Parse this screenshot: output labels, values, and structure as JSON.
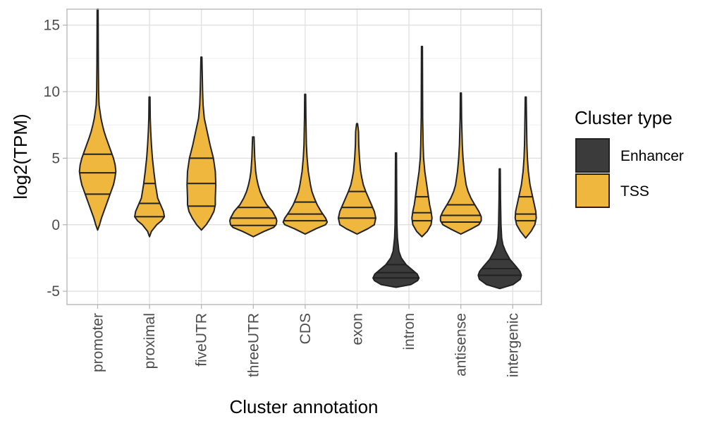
{
  "chart_data": {
    "type": "violin",
    "xlabel": "Cluster annotation",
    "ylabel": "log2(TPM)",
    "ylim": [
      -6,
      16.2
    ],
    "y_ticks": [
      -5,
      0,
      5,
      10,
      15
    ],
    "y_tick_labels": [
      "-5",
      "0",
      "5",
      "10",
      "15"
    ],
    "grid": true,
    "legend": {
      "title": "Cluster type",
      "position": "right",
      "entries": [
        {
          "label": "Enhancer",
          "color": "#3b3b3b"
        },
        {
          "label": "TSS",
          "color": "#f0b73e"
        }
      ]
    },
    "categories": [
      "promoter",
      "proximal",
      "fiveUTR",
      "threeUTR",
      "CDS",
      "exon",
      "intron",
      "antisense",
      "intergenic"
    ],
    "violins": [
      {
        "category": "promoter",
        "type": "TSS",
        "min": -0.4,
        "max": 16.2,
        "quartiles": [
          2.3,
          3.9,
          5.3
        ],
        "profile": [
          [
            -0.4,
            0.0
          ],
          [
            0.0,
            0.08
          ],
          [
            0.5,
            0.16
          ],
          [
            1.0,
            0.26
          ],
          [
            1.5,
            0.36
          ],
          [
            2.0,
            0.46
          ],
          [
            2.5,
            0.56
          ],
          [
            3.0,
            0.66
          ],
          [
            3.5,
            0.72
          ],
          [
            4.0,
            0.76
          ],
          [
            4.5,
            0.73
          ],
          [
            5.0,
            0.66
          ],
          [
            5.5,
            0.56
          ],
          [
            6.0,
            0.46
          ],
          [
            6.5,
            0.36
          ],
          [
            7.0,
            0.27
          ],
          [
            7.5,
            0.2
          ],
          [
            8.0,
            0.14
          ],
          [
            9.0,
            0.06
          ],
          [
            10.0,
            0.04
          ],
          [
            12.0,
            0.03
          ],
          [
            16.2,
            0.02
          ]
        ]
      },
      {
        "category": "proximal",
        "type": "TSS",
        "min": -0.9,
        "max": 9.6,
        "quartiles": [
          0.6,
          1.6,
          3.1
        ],
        "profile": [
          [
            -0.9,
            0.0
          ],
          [
            -0.5,
            0.08
          ],
          [
            0.0,
            0.3
          ],
          [
            0.3,
            0.5
          ],
          [
            0.6,
            0.62
          ],
          [
            1.0,
            0.58
          ],
          [
            1.5,
            0.46
          ],
          [
            2.0,
            0.34
          ],
          [
            3.0,
            0.25
          ],
          [
            4.0,
            0.18
          ],
          [
            5.0,
            0.12
          ],
          [
            6.0,
            0.08
          ],
          [
            7.0,
            0.05
          ],
          [
            8.0,
            0.03
          ],
          [
            9.6,
            0.02
          ]
        ]
      },
      {
        "category": "fiveUTR",
        "type": "TSS",
        "min": -0.4,
        "max": 12.6,
        "quartiles": [
          1.4,
          3.1,
          5.0
        ],
        "profile": [
          [
            -0.4,
            0.0
          ],
          [
            0.0,
            0.2
          ],
          [
            0.5,
            0.38
          ],
          [
            1.0,
            0.52
          ],
          [
            1.5,
            0.58
          ],
          [
            2.0,
            0.58
          ],
          [
            3.0,
            0.6
          ],
          [
            4.0,
            0.58
          ],
          [
            5.0,
            0.5
          ],
          [
            6.0,
            0.36
          ],
          [
            7.0,
            0.24
          ],
          [
            8.0,
            0.12
          ],
          [
            9.0,
            0.07
          ],
          [
            10.0,
            0.05
          ],
          [
            12.6,
            0.02
          ]
        ]
      },
      {
        "category": "threeUTR",
        "type": "TSS",
        "min": -0.9,
        "max": 6.6,
        "quartiles": [
          -0.05,
          0.5,
          1.3
        ],
        "profile": [
          [
            -0.9,
            0.0
          ],
          [
            -0.5,
            0.45
          ],
          [
            -0.2,
            0.85
          ],
          [
            0.0,
            0.95
          ],
          [
            0.3,
            0.98
          ],
          [
            0.5,
            0.95
          ],
          [
            1.0,
            0.8
          ],
          [
            1.5,
            0.56
          ],
          [
            2.0,
            0.4
          ],
          [
            2.5,
            0.28
          ],
          [
            3.0,
            0.2
          ],
          [
            3.5,
            0.14
          ],
          [
            4.0,
            0.1
          ],
          [
            5.0,
            0.06
          ],
          [
            6.6,
            0.03
          ]
        ]
      },
      {
        "category": "CDS",
        "type": "TSS",
        "min": -0.7,
        "max": 9.8,
        "quartiles": [
          0.3,
          0.8,
          1.7
        ],
        "profile": [
          [
            -0.7,
            0.0
          ],
          [
            -0.3,
            0.45
          ],
          [
            0.0,
            0.85
          ],
          [
            0.2,
            0.92
          ],
          [
            0.5,
            0.85
          ],
          [
            1.0,
            0.66
          ],
          [
            1.5,
            0.5
          ],
          [
            2.0,
            0.38
          ],
          [
            2.5,
            0.28
          ],
          [
            3.0,
            0.22
          ],
          [
            4.0,
            0.13
          ],
          [
            5.0,
            0.08
          ],
          [
            6.0,
            0.05
          ],
          [
            8.0,
            0.03
          ],
          [
            9.8,
            0.02
          ]
        ]
      },
      {
        "category": "exon",
        "type": "TSS",
        "min": -0.7,
        "max": 7.6,
        "quartiles": [
          0.5,
          1.3,
          2.5
        ],
        "profile": [
          [
            -0.7,
            0.0
          ],
          [
            -0.3,
            0.45
          ],
          [
            0.0,
            0.72
          ],
          [
            0.5,
            0.78
          ],
          [
            1.0,
            0.72
          ],
          [
            1.5,
            0.6
          ],
          [
            2.0,
            0.48
          ],
          [
            2.5,
            0.36
          ],
          [
            3.0,
            0.26
          ],
          [
            3.5,
            0.2
          ],
          [
            4.0,
            0.15
          ],
          [
            5.0,
            0.1
          ],
          [
            6.0,
            0.07
          ],
          [
            7.0,
            0.06
          ],
          [
            7.6,
            0.02
          ]
        ]
      },
      {
        "category": "intron",
        "type": "Enhancer",
        "min": -4.7,
        "max": 5.4,
        "quartiles": [
          -4.0,
          -3.6,
          -3.0
        ],
        "profile": [
          [
            -4.7,
            0.0
          ],
          [
            -4.5,
            0.62
          ],
          [
            -4.2,
            0.9
          ],
          [
            -4.0,
            0.96
          ],
          [
            -3.7,
            0.88
          ],
          [
            -3.4,
            0.68
          ],
          [
            -3.0,
            0.42
          ],
          [
            -2.5,
            0.22
          ],
          [
            -2.0,
            0.12
          ],
          [
            -1.0,
            0.06
          ],
          [
            0.0,
            0.04
          ],
          [
            2.0,
            0.03
          ],
          [
            5.4,
            0.02
          ]
        ]
      },
      {
        "category": "intron",
        "type": "TSS",
        "min": -0.9,
        "max": 13.4,
        "quartiles": [
          0.3,
          0.9,
          2.1
        ],
        "profile": [
          [
            -0.9,
            0.0
          ],
          [
            -0.5,
            0.22
          ],
          [
            0.0,
            0.38
          ],
          [
            0.5,
            0.42
          ],
          [
            1.0,
            0.38
          ],
          [
            1.5,
            0.32
          ],
          [
            2.0,
            0.28
          ],
          [
            2.5,
            0.24
          ],
          [
            3.0,
            0.2
          ],
          [
            4.0,
            0.12
          ],
          [
            5.0,
            0.07
          ],
          [
            6.0,
            0.05
          ],
          [
            8.0,
            0.03
          ],
          [
            13.4,
            0.02
          ]
        ]
      },
      {
        "category": "antisense",
        "type": "TSS",
        "min": -0.7,
        "max": 9.9,
        "quartiles": [
          0.2,
          0.7,
          1.5
        ],
        "profile": [
          [
            -0.7,
            0.0
          ],
          [
            -0.3,
            0.45
          ],
          [
            0.0,
            0.75
          ],
          [
            0.3,
            0.85
          ],
          [
            0.6,
            0.85
          ],
          [
            1.0,
            0.75
          ],
          [
            1.5,
            0.58
          ],
          [
            2.0,
            0.42
          ],
          [
            2.5,
            0.3
          ],
          [
            3.0,
            0.22
          ],
          [
            4.0,
            0.14
          ],
          [
            5.0,
            0.09
          ],
          [
            6.0,
            0.06
          ],
          [
            8.0,
            0.03
          ],
          [
            9.9,
            0.02
          ]
        ]
      },
      {
        "category": "intergenic",
        "type": "Enhancer",
        "min": -4.8,
        "max": 4.2,
        "quartiles": [
          -3.8,
          -3.3,
          -2.6
        ],
        "profile": [
          [
            -4.8,
            0.0
          ],
          [
            -4.5,
            0.55
          ],
          [
            -4.1,
            0.85
          ],
          [
            -3.8,
            0.9
          ],
          [
            -3.5,
            0.84
          ],
          [
            -3.1,
            0.66
          ],
          [
            -2.6,
            0.42
          ],
          [
            -2.0,
            0.24
          ],
          [
            -1.5,
            0.13
          ],
          [
            -1.0,
            0.08
          ],
          [
            0.0,
            0.05
          ],
          [
            2.0,
            0.03
          ],
          [
            4.2,
            0.02
          ]
        ]
      },
      {
        "category": "intergenic",
        "type": "TSS",
        "min": -1.0,
        "max": 9.6,
        "quartiles": [
          0.3,
          0.8,
          2.1
        ],
        "profile": [
          [
            -1.0,
            0.0
          ],
          [
            -0.5,
            0.22
          ],
          [
            0.0,
            0.38
          ],
          [
            0.5,
            0.44
          ],
          [
            1.0,
            0.42
          ],
          [
            1.5,
            0.36
          ],
          [
            2.0,
            0.3
          ],
          [
            2.5,
            0.24
          ],
          [
            3.0,
            0.18
          ],
          [
            4.0,
            0.11
          ],
          [
            5.0,
            0.07
          ],
          [
            6.0,
            0.05
          ],
          [
            7.0,
            0.04
          ],
          [
            9.6,
            0.02
          ]
        ]
      }
    ]
  }
}
